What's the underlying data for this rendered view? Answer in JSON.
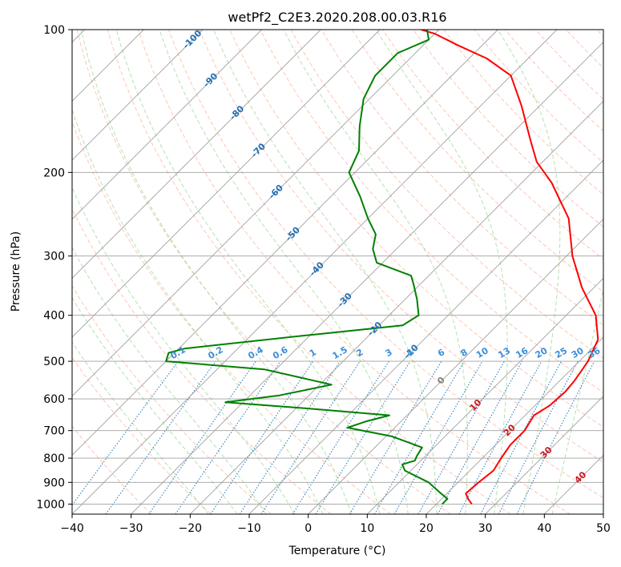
{
  "chart_data": {
    "type": "line",
    "title": "wetPf2_C2E3.2020.208.00.03.R16",
    "xlabel": "Temperature (°C)",
    "ylabel": "Pressure (hPa)",
    "xlim": [
      -40,
      50
    ],
    "ylim": [
      1050,
      100
    ],
    "y_scale": "log",
    "grid": true,
    "x_ticks": [
      -40,
      -30,
      -20,
      -10,
      0,
      10,
      20,
      30,
      40,
      50
    ],
    "y_ticks": [
      100,
      200,
      300,
      400,
      500,
      600,
      700,
      800,
      900,
      1000
    ],
    "skew_degrees": 45,
    "series": [
      {
        "color": "#ff0000",
        "points": [
          [
            26.0,
            1000
          ],
          [
            24.5,
            975
          ],
          [
            23.2,
            950
          ],
          [
            23.5,
            900
          ],
          [
            24.0,
            850
          ],
          [
            23.2,
            800
          ],
          [
            22.5,
            750
          ],
          [
            22.5,
            700
          ],
          [
            21.5,
            650
          ],
          [
            22.5,
            620
          ],
          [
            22.8,
            580
          ],
          [
            22.5,
            550
          ],
          [
            21.5,
            500
          ],
          [
            19.5,
            450
          ],
          [
            15.0,
            400
          ],
          [
            8.0,
            350
          ],
          [
            1.0,
            300
          ],
          [
            -6.0,
            250
          ],
          [
            -15.0,
            210
          ],
          [
            -21.0,
            190
          ],
          [
            -26.0,
            170
          ],
          [
            -33.0,
            145
          ],
          [
            -40.0,
            125
          ],
          [
            -47.0,
            115
          ],
          [
            -54.0,
            108
          ],
          [
            -60.0,
            102
          ],
          [
            -63.0,
            100
          ]
        ]
      },
      {
        "color": "#008000",
        "points": [
          [
            21.0,
            1000
          ],
          [
            21.0,
            975
          ],
          [
            19.0,
            950
          ],
          [
            15.0,
            900
          ],
          [
            9.0,
            850
          ],
          [
            7.5,
            825
          ],
          [
            9.0,
            810
          ],
          [
            8.5,
            790
          ],
          [
            8.0,
            760
          ],
          [
            1.0,
            720
          ],
          [
            -8.0,
            690
          ],
          [
            -6.0,
            670
          ],
          [
            -3.0,
            650
          ],
          [
            -17.0,
            630
          ],
          [
            -33.0,
            610
          ],
          [
            -25.0,
            590
          ],
          [
            -18.0,
            560
          ],
          [
            -32.0,
            520
          ],
          [
            -50.0,
            500
          ],
          [
            -51.0,
            480
          ],
          [
            -49.0,
            470
          ],
          [
            -30.0,
            440
          ],
          [
            -16.0,
            420
          ],
          [
            -15.0,
            400
          ],
          [
            -18.0,
            370
          ],
          [
            -21.0,
            345
          ],
          [
            -23.0,
            330
          ],
          [
            -31.0,
            310
          ],
          [
            -34.0,
            290
          ],
          [
            -36.0,
            270
          ],
          [
            -40.0,
            250
          ],
          [
            -45.0,
            225
          ],
          [
            -51.0,
            200
          ],
          [
            -53.0,
            180
          ],
          [
            -57.0,
            160
          ],
          [
            -61.0,
            140
          ],
          [
            -63.0,
            125
          ],
          [
            -63.0,
            112
          ],
          [
            -60.0,
            105
          ],
          [
            -62.0,
            100
          ]
        ]
      }
    ],
    "isotherm_labels": [
      "-100",
      "-90",
      "-80",
      "-70",
      "-60",
      "-50",
      "-40",
      "-30",
      "-20",
      "-10",
      "0",
      "10",
      "20",
      "30",
      "40"
    ],
    "mixing_ratio_labels": [
      "0.1",
      "0.2",
      "0.4",
      "0.6",
      "1",
      "1.5",
      "2",
      "3",
      "4",
      "6",
      "8",
      "10",
      "13",
      "16",
      "20",
      "25",
      "30",
      "36"
    ],
    "colors": {
      "isotherm": "#a0a0a0",
      "dry_adiabat": "#fcae91",
      "moist_adiabat": "#a1d99b",
      "mixing_ratio": "#3182bd",
      "isotherm_label_cold": "#2171b5",
      "isotherm_label_zero": "#808080",
      "isotherm_label_warm": "#cb181d",
      "mixing_label": "#3b8fd9"
    }
  }
}
